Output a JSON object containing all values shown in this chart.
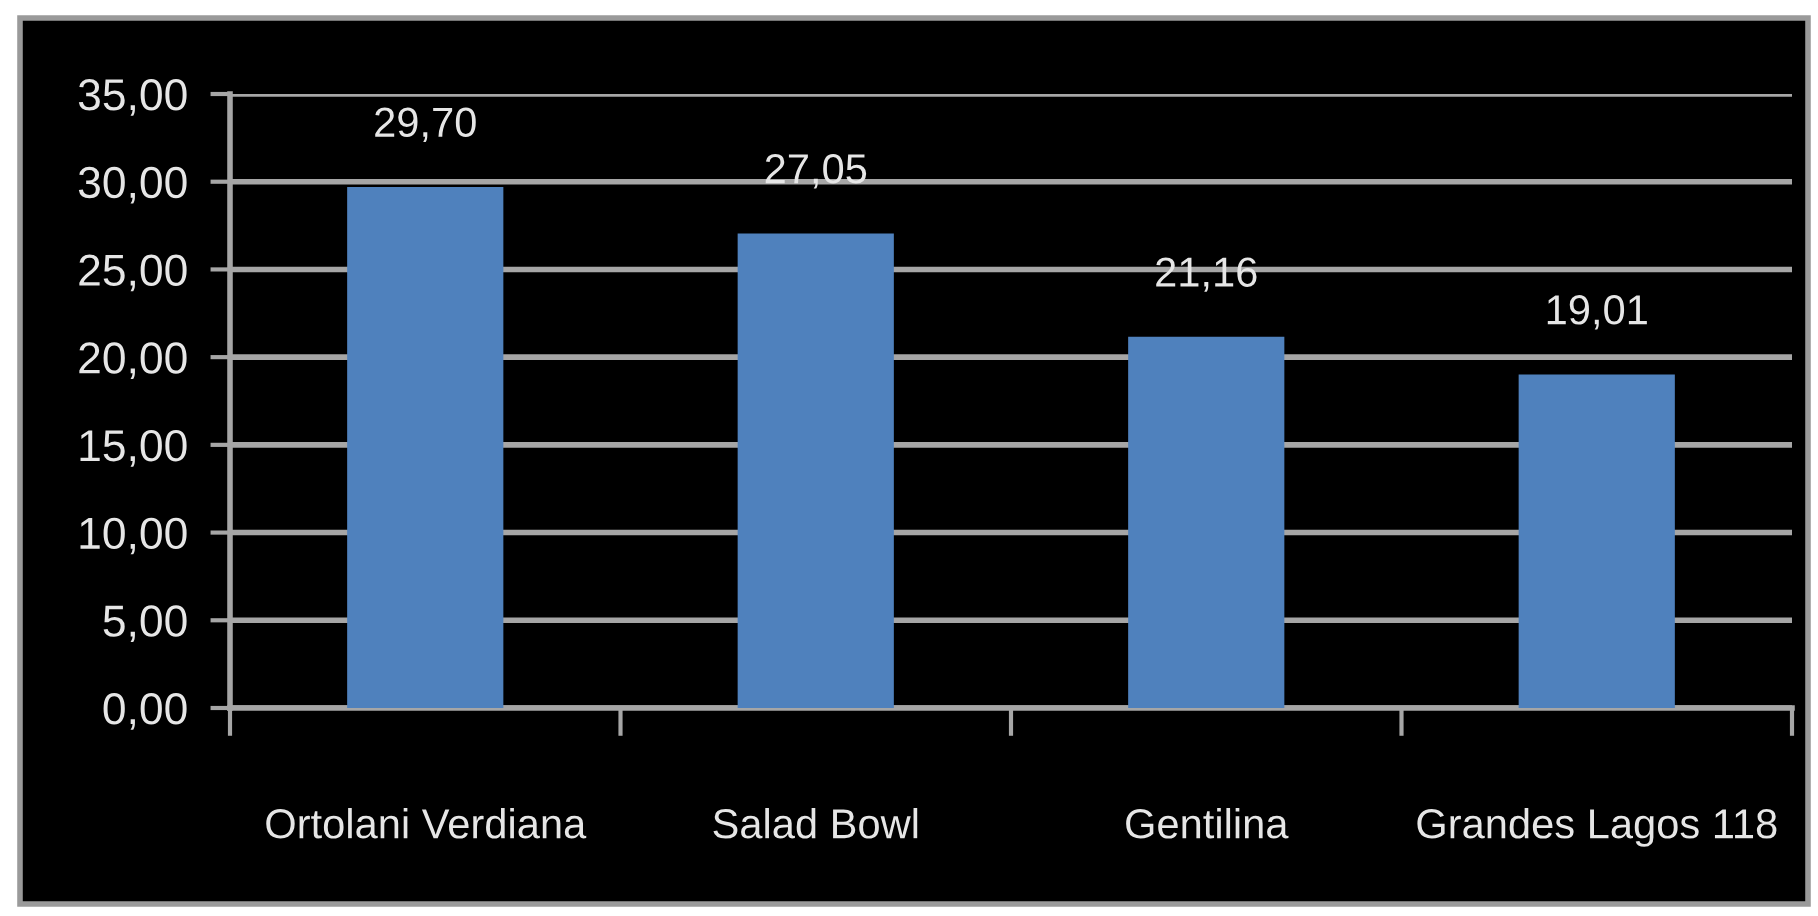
{
  "chart_data": {
    "type": "bar",
    "categories": [
      "Ortolani Verdiana",
      "Salad Bowl",
      "Gentilina",
      "Grandes Lagos 118"
    ],
    "values": [
      29.7,
      27.05,
      21.16,
      19.01
    ],
    "color": "#4f81bd",
    "value_labels": [
      "29,70",
      "27,05",
      "21,16",
      "19,01"
    ],
    "ylim": [
      0,
      35
    ],
    "yticks": [
      {
        "value": 0,
        "label": "0,00"
      },
      {
        "value": 5,
        "label": "5,00"
      },
      {
        "value": 10,
        "label": "10,00"
      },
      {
        "value": 15,
        "label": "15,00"
      },
      {
        "value": 20,
        "label": "20,00"
      },
      {
        "value": 25,
        "label": "25,00"
      },
      {
        "value": 30,
        "label": "30,00"
      },
      {
        "value": 35,
        "label": "35,00"
      }
    ],
    "grid": "y"
  }
}
